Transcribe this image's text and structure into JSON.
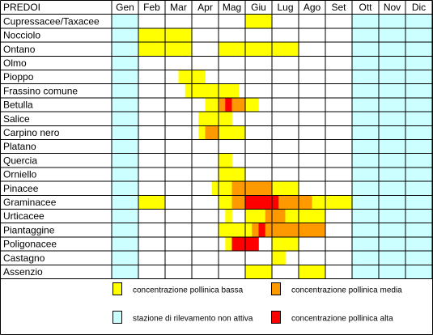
{
  "colors": {
    "low": "#ffff00",
    "medium": "#ff9900",
    "high": "#ff0000",
    "inactive": "#ccffff",
    "grid": "#000000",
    "background": "#ffffff"
  },
  "chart_data": {
    "type": "table",
    "title": "PREDOI",
    "months": [
      "Gen",
      "Feb",
      "Mar",
      "Apr",
      "Mag",
      "Giu",
      "Lug",
      "Ago",
      "Set",
      "Ott",
      "Nov",
      "Dic"
    ],
    "inactive_months": [
      "Gen",
      "Ott",
      "Nov",
      "Dic"
    ],
    "level_scale": {
      "0": "none",
      "1": "low",
      "2": "medium",
      "3": "high"
    },
    "periods_per_month": 4,
    "rows": [
      {
        "name": "Cupressacee/Taxacee",
        "levels": [
          0,
          0,
          0,
          0,
          0,
          0,
          0,
          0,
          0,
          0,
          0,
          0,
          0,
          0,
          0,
          0,
          0,
          0,
          0,
          0,
          1,
          1,
          1,
          1,
          0,
          0,
          0,
          0,
          0,
          0,
          0,
          0,
          0,
          0,
          0,
          0,
          0,
          0,
          0,
          0,
          0,
          0,
          0,
          0,
          0,
          0,
          0,
          0
        ]
      },
      {
        "name": "Nocciolo",
        "levels": [
          0,
          0,
          0,
          0,
          1,
          1,
          1,
          1,
          1,
          1,
          1,
          1,
          0,
          0,
          0,
          0,
          0,
          0,
          0,
          0,
          0,
          0,
          0,
          0,
          0,
          0,
          0,
          0,
          0,
          0,
          0,
          0,
          0,
          0,
          0,
          0,
          0,
          0,
          0,
          0,
          0,
          0,
          0,
          0,
          0,
          0,
          0,
          0
        ]
      },
      {
        "name": "Ontano",
        "levels": [
          0,
          0,
          0,
          0,
          1,
          1,
          1,
          1,
          1,
          1,
          1,
          1,
          0,
          0,
          0,
          0,
          1,
          1,
          1,
          1,
          1,
          1,
          1,
          1,
          1,
          1,
          1,
          1,
          0,
          0,
          0,
          0,
          0,
          0,
          0,
          0,
          0,
          0,
          0,
          0,
          0,
          0,
          0,
          0,
          0,
          0,
          0,
          0
        ]
      },
      {
        "name": "Olmo",
        "levels": [
          0,
          0,
          0,
          0,
          0,
          0,
          0,
          0,
          0,
          0,
          0,
          0,
          0,
          0,
          0,
          0,
          0,
          0,
          0,
          0,
          0,
          0,
          0,
          0,
          0,
          0,
          0,
          0,
          0,
          0,
          0,
          0,
          0,
          0,
          0,
          0,
          0,
          0,
          0,
          0,
          0,
          0,
          0,
          0,
          0,
          0,
          0,
          0
        ]
      },
      {
        "name": "Pioppo",
        "levels": [
          0,
          0,
          0,
          0,
          0,
          0,
          0,
          0,
          0,
          0,
          1,
          1,
          1,
          1,
          0,
          0,
          0,
          0,
          0,
          0,
          0,
          0,
          0,
          0,
          0,
          0,
          0,
          0,
          0,
          0,
          0,
          0,
          0,
          0,
          0,
          0,
          0,
          0,
          0,
          0,
          0,
          0,
          0,
          0,
          0,
          0,
          0,
          0
        ]
      },
      {
        "name": "Frassino comune",
        "levels": [
          0,
          0,
          0,
          0,
          0,
          0,
          0,
          0,
          0,
          0,
          0,
          1,
          1,
          1,
          1,
          1,
          1,
          1,
          1,
          0,
          0,
          0,
          0,
          0,
          0,
          0,
          0,
          0,
          0,
          0,
          0,
          0,
          0,
          0,
          0,
          0,
          0,
          0,
          0,
          0,
          0,
          0,
          0,
          0,
          0,
          0,
          0,
          0
        ]
      },
      {
        "name": "Betulla",
        "levels": [
          0,
          0,
          0,
          0,
          0,
          0,
          0,
          0,
          0,
          0,
          0,
          0,
          0,
          0,
          1,
          1,
          2,
          3,
          2,
          2,
          1,
          1,
          0,
          0,
          0,
          0,
          0,
          0,
          0,
          0,
          0,
          0,
          0,
          0,
          0,
          0,
          0,
          0,
          0,
          0,
          0,
          0,
          0,
          0,
          0,
          0,
          0,
          0
        ]
      },
      {
        "name": "Salice",
        "levels": [
          0,
          0,
          0,
          0,
          0,
          0,
          0,
          0,
          0,
          0,
          0,
          0,
          0,
          1,
          1,
          1,
          1,
          1,
          0,
          0,
          0,
          0,
          0,
          0,
          0,
          0,
          0,
          0,
          0,
          0,
          0,
          0,
          0,
          0,
          0,
          0,
          0,
          0,
          0,
          0,
          0,
          0,
          0,
          0,
          0,
          0,
          0,
          0
        ]
      },
      {
        "name": "Carpino nero",
        "levels": [
          0,
          0,
          0,
          0,
          0,
          0,
          0,
          0,
          0,
          0,
          0,
          0,
          0,
          1,
          2,
          2,
          1,
          1,
          1,
          1,
          0,
          0,
          0,
          0,
          0,
          0,
          0,
          0,
          0,
          0,
          0,
          0,
          0,
          0,
          0,
          0,
          0,
          0,
          0,
          0,
          0,
          0,
          0,
          0,
          0,
          0,
          0,
          0
        ]
      },
      {
        "name": "Platano",
        "levels": [
          0,
          0,
          0,
          0,
          0,
          0,
          0,
          0,
          0,
          0,
          0,
          0,
          0,
          0,
          0,
          0,
          0,
          0,
          0,
          0,
          0,
          0,
          0,
          0,
          0,
          0,
          0,
          0,
          0,
          0,
          0,
          0,
          0,
          0,
          0,
          0,
          0,
          0,
          0,
          0,
          0,
          0,
          0,
          0,
          0,
          0,
          0,
          0
        ]
      },
      {
        "name": "Quercia",
        "levels": [
          0,
          0,
          0,
          0,
          0,
          0,
          0,
          0,
          0,
          0,
          0,
          0,
          0,
          0,
          0,
          0,
          1,
          1,
          0,
          0,
          0,
          0,
          0,
          0,
          0,
          0,
          0,
          0,
          0,
          0,
          0,
          0,
          0,
          0,
          0,
          0,
          0,
          0,
          0,
          0,
          0,
          0,
          0,
          0,
          0,
          0,
          0,
          0
        ]
      },
      {
        "name": "Orniello",
        "levels": [
          0,
          0,
          0,
          0,
          0,
          0,
          0,
          0,
          0,
          0,
          0,
          0,
          0,
          0,
          0,
          0,
          1,
          1,
          1,
          1,
          0,
          0,
          0,
          0,
          0,
          0,
          0,
          0,
          0,
          0,
          0,
          0,
          0,
          0,
          0,
          0,
          0,
          0,
          0,
          0,
          0,
          0,
          0,
          0,
          0,
          0,
          0,
          0
        ]
      },
      {
        "name": "Pinacee",
        "levels": [
          0,
          0,
          0,
          0,
          0,
          0,
          0,
          0,
          0,
          0,
          0,
          0,
          0,
          0,
          0,
          1,
          1,
          1,
          2,
          2,
          2,
          2,
          2,
          2,
          1,
          1,
          1,
          1,
          0,
          0,
          0,
          0,
          0,
          0,
          0,
          0,
          0,
          0,
          0,
          0,
          0,
          0,
          0,
          0,
          0,
          0,
          0,
          0
        ]
      },
      {
        "name": "Graminacee",
        "levels": [
          0,
          0,
          0,
          0,
          1,
          1,
          1,
          1,
          0,
          0,
          0,
          0,
          0,
          0,
          0,
          0,
          1,
          1,
          2,
          2,
          3,
          3,
          3,
          3,
          3,
          2,
          2,
          2,
          2,
          2,
          1,
          1,
          1,
          1,
          1,
          1,
          0,
          0,
          0,
          0,
          0,
          0,
          0,
          0,
          0,
          0,
          0,
          0
        ]
      },
      {
        "name": "Urticacee",
        "levels": [
          0,
          0,
          0,
          0,
          0,
          0,
          0,
          0,
          0,
          0,
          0,
          0,
          0,
          0,
          0,
          0,
          0,
          1,
          0,
          0,
          1,
          1,
          1,
          2,
          2,
          2,
          1,
          1,
          1,
          1,
          1,
          1,
          0,
          0,
          0,
          0,
          0,
          0,
          0,
          0,
          0,
          0,
          0,
          0,
          0,
          0,
          0,
          0
        ]
      },
      {
        "name": "Piantaggine",
        "levels": [
          0,
          0,
          0,
          0,
          0,
          0,
          0,
          0,
          0,
          0,
          0,
          0,
          0,
          0,
          0,
          0,
          1,
          1,
          1,
          1,
          1,
          2,
          3,
          2,
          2,
          2,
          2,
          2,
          2,
          2,
          2,
          2,
          0,
          0,
          0,
          0,
          0,
          0,
          0,
          0,
          0,
          0,
          0,
          0,
          0,
          0,
          0,
          0
        ]
      },
      {
        "name": "Poligonacee",
        "levels": [
          0,
          0,
          0,
          0,
          0,
          0,
          0,
          0,
          0,
          0,
          0,
          0,
          0,
          0,
          0,
          0,
          0,
          1,
          3,
          3,
          3,
          3,
          0,
          0,
          1,
          1,
          1,
          1,
          0,
          0,
          0,
          0,
          0,
          0,
          0,
          0,
          0,
          0,
          0,
          0,
          0,
          0,
          0,
          0,
          0,
          0,
          0,
          0
        ]
      },
      {
        "name": "Castagno",
        "levels": [
          0,
          0,
          0,
          0,
          0,
          0,
          0,
          0,
          0,
          0,
          0,
          0,
          0,
          0,
          0,
          0,
          0,
          0,
          0,
          0,
          0,
          0,
          0,
          0,
          1,
          1,
          0,
          0,
          0,
          0,
          0,
          0,
          0,
          0,
          0,
          0,
          0,
          0,
          0,
          0,
          0,
          0,
          0,
          0,
          0,
          0,
          0,
          0
        ]
      },
      {
        "name": "Assenzio",
        "levels": [
          0,
          0,
          0,
          0,
          0,
          0,
          0,
          0,
          0,
          0,
          0,
          0,
          0,
          0,
          0,
          0,
          0,
          0,
          0,
          0,
          1,
          1,
          1,
          1,
          0,
          0,
          0,
          0,
          1,
          1,
          1,
          1,
          0,
          0,
          0,
          0,
          0,
          0,
          0,
          0,
          0,
          0,
          0,
          0,
          0,
          0,
          0,
          0
        ]
      }
    ],
    "legend": [
      {
        "label": "concentrazione pollinica bassa",
        "level": "low"
      },
      {
        "label": "concentrazione pollinica media",
        "level": "medium"
      },
      {
        "label": "stazione di rilevamento non attiva",
        "level": "inactive"
      },
      {
        "label": "concentrazione pollinica alta",
        "level": "high"
      }
    ]
  }
}
